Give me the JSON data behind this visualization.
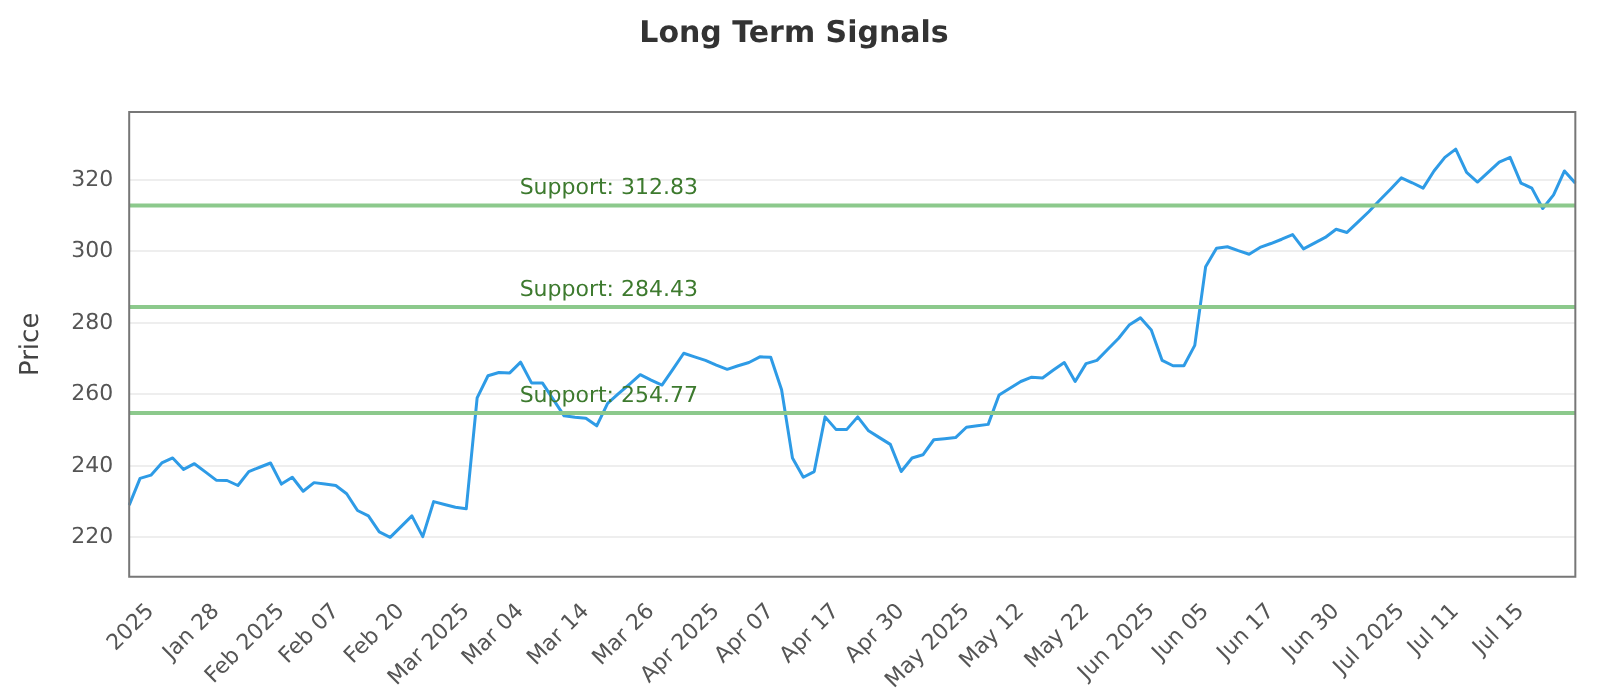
{
  "chart_data": {
    "type": "line",
    "title": "Long Term Signals",
    "ylabel": "Price",
    "categories": [
      null,
      null,
      "2025",
      null,
      null,
      null,
      null,
      null,
      "Jan 28",
      null,
      null,
      null,
      null,
      null,
      "Feb 2025",
      null,
      null,
      null,
      null,
      "Feb 07",
      null,
      null,
      null,
      null,
      null,
      "Feb 20",
      null,
      null,
      null,
      null,
      null,
      "Mar 2025",
      null,
      null,
      null,
      null,
      "Mar 04",
      null,
      null,
      null,
      null,
      null,
      "Mar 14",
      null,
      null,
      null,
      null,
      null,
      "Mar 26",
      null,
      null,
      null,
      null,
      null,
      "Apr 2025",
      null,
      null,
      null,
      null,
      "Apr 07",
      null,
      null,
      null,
      null,
      null,
      "Apr 17",
      null,
      null,
      null,
      null,
      null,
      "Apr 30",
      null,
      null,
      null,
      null,
      null,
      "May 2025",
      null,
      null,
      null,
      null,
      "May 12",
      null,
      null,
      null,
      null,
      null,
      "May 22",
      null,
      null,
      null,
      null,
      null,
      "Jun 2025",
      null,
      null,
      null,
      null,
      "Jun 05",
      null,
      null,
      null,
      null,
      null,
      "Jun 17",
      null,
      null,
      null,
      null,
      null,
      "Jun 30",
      null,
      null,
      null,
      null,
      null,
      "Jul 2025",
      null,
      null,
      null,
      null,
      "Jul 11",
      null,
      null,
      null,
      null,
      null,
      "Jul 15",
      null,
      null,
      null,
      null,
      null
    ],
    "series": [
      {
        "color": "#2e9be6",
        "values": [
          229,
          236.5,
          237.4,
          240.8,
          242.2,
          239,
          240.6,
          238.3,
          236,
          235.9,
          234.5,
          238.4,
          239.6,
          240.8,
          234.9,
          236.8,
          232.9,
          235.3,
          234.9,
          234.5,
          232.2,
          227.5,
          226,
          221.5,
          220,
          223,
          226,
          220.2,
          230,
          229.2,
          228.4,
          228,
          259,
          265.2,
          266.1,
          266,
          269,
          263.2,
          263.2,
          258.6,
          254,
          253.6,
          253.3,
          251.2,
          257.5,
          260.2,
          262.8,
          265.5,
          264,
          262.6,
          267,
          271.5,
          270.5,
          269.5,
          268.2,
          267,
          268,
          268.9,
          270.5,
          270.4,
          261.3,
          242.2,
          236.8,
          238.4,
          253.7,
          250.2,
          250.2,
          253.7,
          249.8,
          247.9,
          246,
          238.4,
          242.2,
          243.1,
          247.3,
          247.6,
          247.9,
          250.8,
          251.2,
          251.6,
          259.8,
          261.7,
          263.6,
          264.8,
          264.6,
          266.8,
          268.9,
          263.6,
          268.6,
          269.5,
          272.6,
          275.7,
          279.5,
          281.4,
          278,
          269.5,
          268,
          268,
          273.7,
          295.7,
          300.9,
          301.3,
          300.2,
          299.2,
          301.1,
          302.2,
          303.4,
          304.7,
          300.7,
          302.3,
          303.9,
          306.2,
          305.3,
          308.2,
          311.1,
          314.3,
          317.4,
          320.6,
          319.2,
          317.7,
          322.5,
          326.3,
          328.6,
          322.1,
          319.4,
          322.2,
          325,
          326.3,
          319.1,
          317.7,
          312,
          315.8,
          322.5,
          319.1
        ]
      }
    ],
    "ylim": [
      209,
      339
    ],
    "yticks": [
      220,
      240,
      260,
      280,
      300,
      320
    ],
    "grid": "y",
    "marker": "none",
    "line_style": "solid",
    "ref_lines": [
      {
        "axis": "y",
        "value": 312.83,
        "label": "Support: 312.83",
        "color": "#8cc98c"
      },
      {
        "axis": "y",
        "value": 284.43,
        "label": "Support: 284.43",
        "color": "#8cc98c"
      },
      {
        "axis": "y",
        "value": 254.77,
        "label": "Support: 254.77",
        "color": "#8cc98c"
      }
    ]
  }
}
